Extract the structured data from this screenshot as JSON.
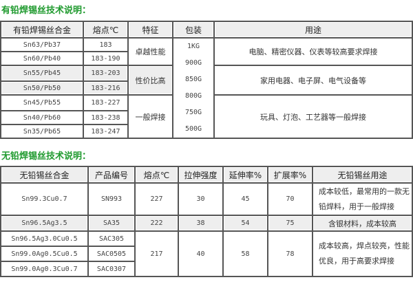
{
  "section1": {
    "title": "有铅焊锡丝技术说明：",
    "headers": [
      "有铅焊锡丝合金",
      "熔点℃",
      "特征",
      "包装",
      "用途"
    ],
    "rows": [
      [
        "Sn63/Pb37",
        "183"
      ],
      [
        "Sn60/Pb40",
        "183-190"
      ],
      [
        "Sn55/Pb45",
        "183-203"
      ],
      [
        "Sn50/Pb50",
        "183-216"
      ],
      [
        "Sn45/Pb55",
        "183-227"
      ],
      [
        "Sn40/Pb60",
        "183-238"
      ],
      [
        "Sn35/Pb65",
        "183-247"
      ]
    ],
    "features": [
      "卓越性能",
      "性价比高",
      "一般焊接"
    ],
    "packaging": [
      "1KG",
      "900G",
      "850G",
      "800G",
      "750G",
      "500G"
    ],
    "uses": [
      "电脑、精密仪器、仪表等较高要求焊接",
      "家用电器、电子屏、电气设备等",
      "玩具、灯泡、工艺器等一般焊接"
    ]
  },
  "section2": {
    "title": "无铅焊锡丝技术说明：",
    "headers": [
      "无铅锡丝合金",
      "产品编号",
      "熔点℃",
      "拉伸强度",
      "延伸率%",
      "扩展率%",
      "无铅锡丝用途"
    ],
    "rows": [
      {
        "alloy": "Sn99.3Cu0.7",
        "code": "SN993",
        "melt": "227",
        "tensile": "30",
        "elong": "45",
        "spread": "70",
        "use": "成本较低，最常用的一款无铅焊料，用于一般焊接"
      },
      {
        "alloy": "Sn96.5Ag3.5",
        "code": "SA35",
        "melt": "222",
        "tensile": "38",
        "elong": "54",
        "spread": "75",
        "use": "含银材料，成本较高"
      }
    ],
    "group": {
      "alloys": [
        "Sn96.5Ag3.0Cu0.5",
        "Sn99.0Ag0.5Cu0.5",
        "Sn99.0Ag0.3Cu0.7"
      ],
      "codes": [
        "SAC305",
        "SAC0505",
        "SAC0307"
      ],
      "melt": "217",
      "tensile": "40",
      "elong": "58",
      "spread": "78",
      "use": "成本较高，焊点较亮，性能优良，用于高要求焊接"
    }
  }
}
